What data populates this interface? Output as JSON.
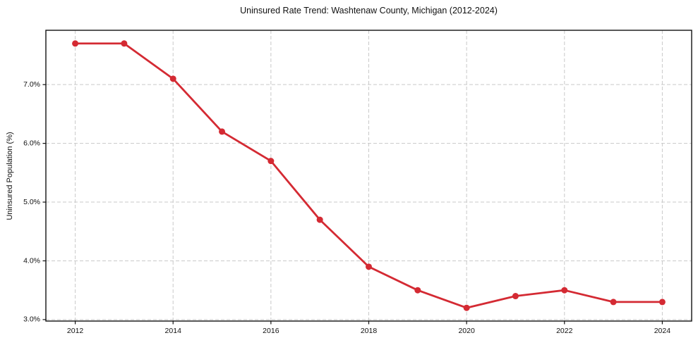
{
  "chart_data": {
    "type": "line",
    "title": "Uninsured Rate Trend: Washtenaw County, Michigan (2012-2024)",
    "xlabel": "",
    "ylabel": "Uninsured Population (%)",
    "x": [
      2012,
      2013,
      2014,
      2015,
      2016,
      2017,
      2018,
      2019,
      2020,
      2021,
      2022,
      2023,
      2024
    ],
    "values": [
      7.7,
      7.7,
      7.1,
      6.2,
      5.7,
      4.7,
      3.9,
      3.5,
      3.2,
      3.4,
      3.5,
      3.3,
      3.3
    ],
    "xlim": [
      2011.4,
      2024.6
    ],
    "ylim": [
      2.975,
      7.925
    ],
    "xticks": [
      2012,
      2014,
      2016,
      2018,
      2020,
      2022,
      2024
    ],
    "xtick_labels": [
      "2012",
      "2014",
      "2016",
      "2018",
      "2020",
      "2022",
      "2024"
    ],
    "yticks": [
      3.0,
      4.0,
      5.0,
      6.0,
      7.0
    ],
    "ytick_labels": [
      "3.0%",
      "4.0%",
      "5.0%",
      "6.0%",
      "7.0%"
    ],
    "grid": true,
    "grid_style": "dashed",
    "legend": "none",
    "marker": "circle",
    "line_color": "#d42a33",
    "grid_color": "#c9c9c9",
    "axis_color": "#111111",
    "background_color": "#ffffff"
  }
}
